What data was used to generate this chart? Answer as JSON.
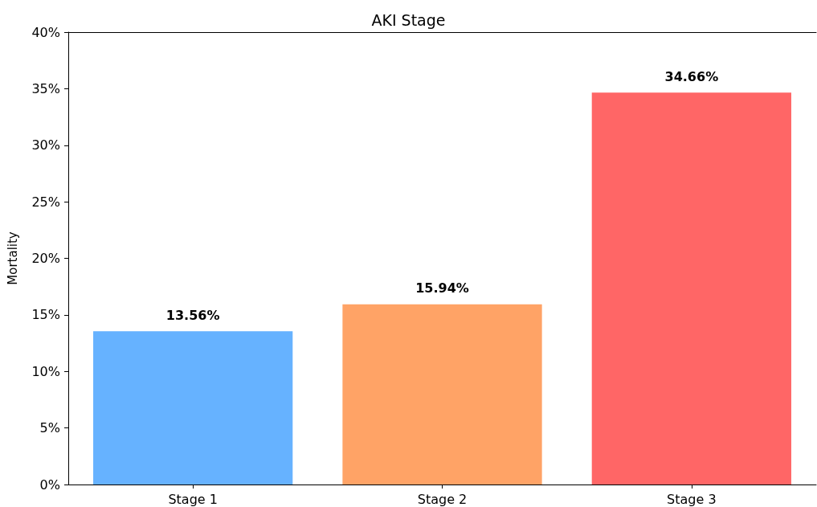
{
  "chart_data": {
    "type": "bar",
    "title": "AKI Stage",
    "ylabel": "Mortality",
    "categories": [
      "Stage 1",
      "Stage 2",
      "Stage 3"
    ],
    "values": [
      13.56,
      15.94,
      34.66
    ],
    "colors": [
      "#66b2ff",
      "#ffa366",
      "#ff6666"
    ],
    "value_labels": [
      "13.56%",
      "15.94%",
      "34.66%"
    ],
    "ylim": [
      0,
      40
    ],
    "yticks": [
      {
        "value": 0,
        "label": "0%"
      },
      {
        "value": 5,
        "label": "5%"
      },
      {
        "value": 10,
        "label": "10%"
      },
      {
        "value": 15,
        "label": "15%"
      },
      {
        "value": 20,
        "label": "20%"
      },
      {
        "value": 25,
        "label": "25%"
      },
      {
        "value": 30,
        "label": "30%"
      },
      {
        "value": 35,
        "label": "35%"
      },
      {
        "value": 40,
        "label": "40%"
      }
    ],
    "grid": false
  }
}
